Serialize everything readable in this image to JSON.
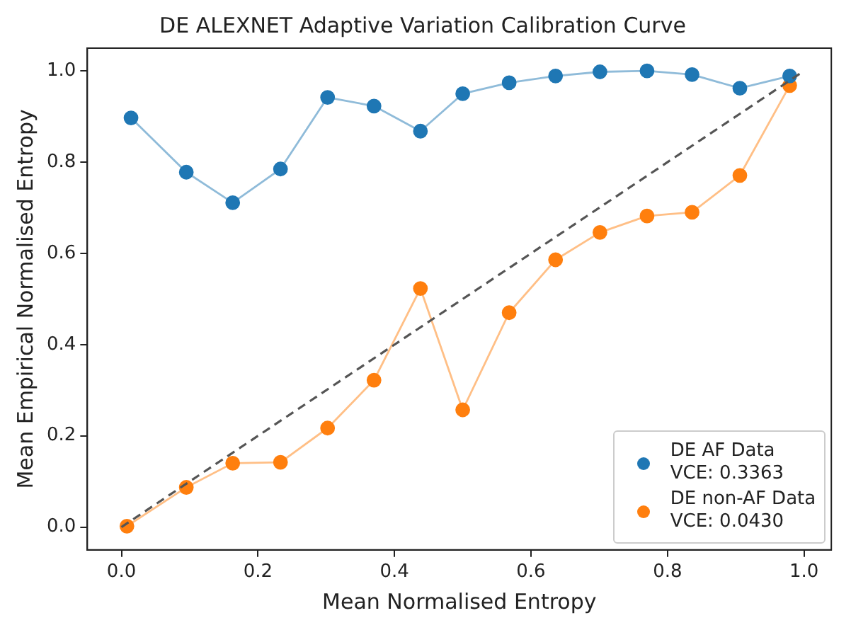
{
  "chart_data": {
    "type": "line",
    "title": "DE ALEXNET Adaptive Variation Calibration Curve",
    "xlabel": "Mean Normalised Entropy",
    "ylabel": "Mean Empirical Normalised Entropy",
    "xlim": [
      -0.05,
      1.04
    ],
    "ylim": [
      -0.05,
      1.05
    ],
    "xticks": [
      {
        "value": 0,
        "label": "0.0"
      },
      {
        "value": 0.2,
        "label": "0.2"
      },
      {
        "value": 0.4,
        "label": "0.4"
      },
      {
        "value": 0.6,
        "label": "0.6"
      },
      {
        "value": 0.8,
        "label": "0.8"
      },
      {
        "value": 1,
        "label": "1.0"
      }
    ],
    "yticks": [
      {
        "value": 0,
        "label": "0.0"
      },
      {
        "value": 0.2,
        "label": "0.2"
      },
      {
        "value": 0.4,
        "label": "0.4"
      },
      {
        "value": 0.6,
        "label": "0.6"
      },
      {
        "value": 0.8,
        "label": "0.8"
      },
      {
        "value": 1,
        "label": "1.0"
      }
    ],
    "grid": false,
    "legend": "bottom right",
    "marker": "circle",
    "series": [
      {
        "name": "DE AF Data\nVCE: 0.3363",
        "color": "#1f77b4",
        "x": [
          0.014,
          0.095,
          0.163,
          0.233,
          0.302,
          0.37,
          0.438,
          0.5,
          0.568,
          0.636,
          0.701,
          0.77,
          0.836,
          0.906,
          0.979
        ],
        "values": [
          0.897,
          0.778,
          0.711,
          0.785,
          0.942,
          0.923,
          0.868,
          0.95,
          0.974,
          0.989,
          0.998,
          1.0,
          0.992,
          0.962,
          0.989
        ]
      },
      {
        "name": "DE non-AF Data\nVCE: 0.0430",
        "color": "#ff7f0e",
        "x": [
          0.008,
          0.095,
          0.163,
          0.233,
          0.302,
          0.37,
          0.438,
          0.5,
          0.568,
          0.636,
          0.701,
          0.77,
          0.836,
          0.906,
          0.979
        ],
        "values": [
          0.002,
          0.087,
          0.14,
          0.142,
          0.217,
          0.322,
          0.523,
          0.257,
          0.47,
          0.586,
          0.646,
          0.682,
          0.69,
          0.771,
          0.968
        ]
      },
      {
        "color": "#555555",
        "line_style": "dashed",
        "marker": "none",
        "x": [
          0,
          1
        ],
        "values": [
          0,
          1
        ]
      }
    ]
  }
}
